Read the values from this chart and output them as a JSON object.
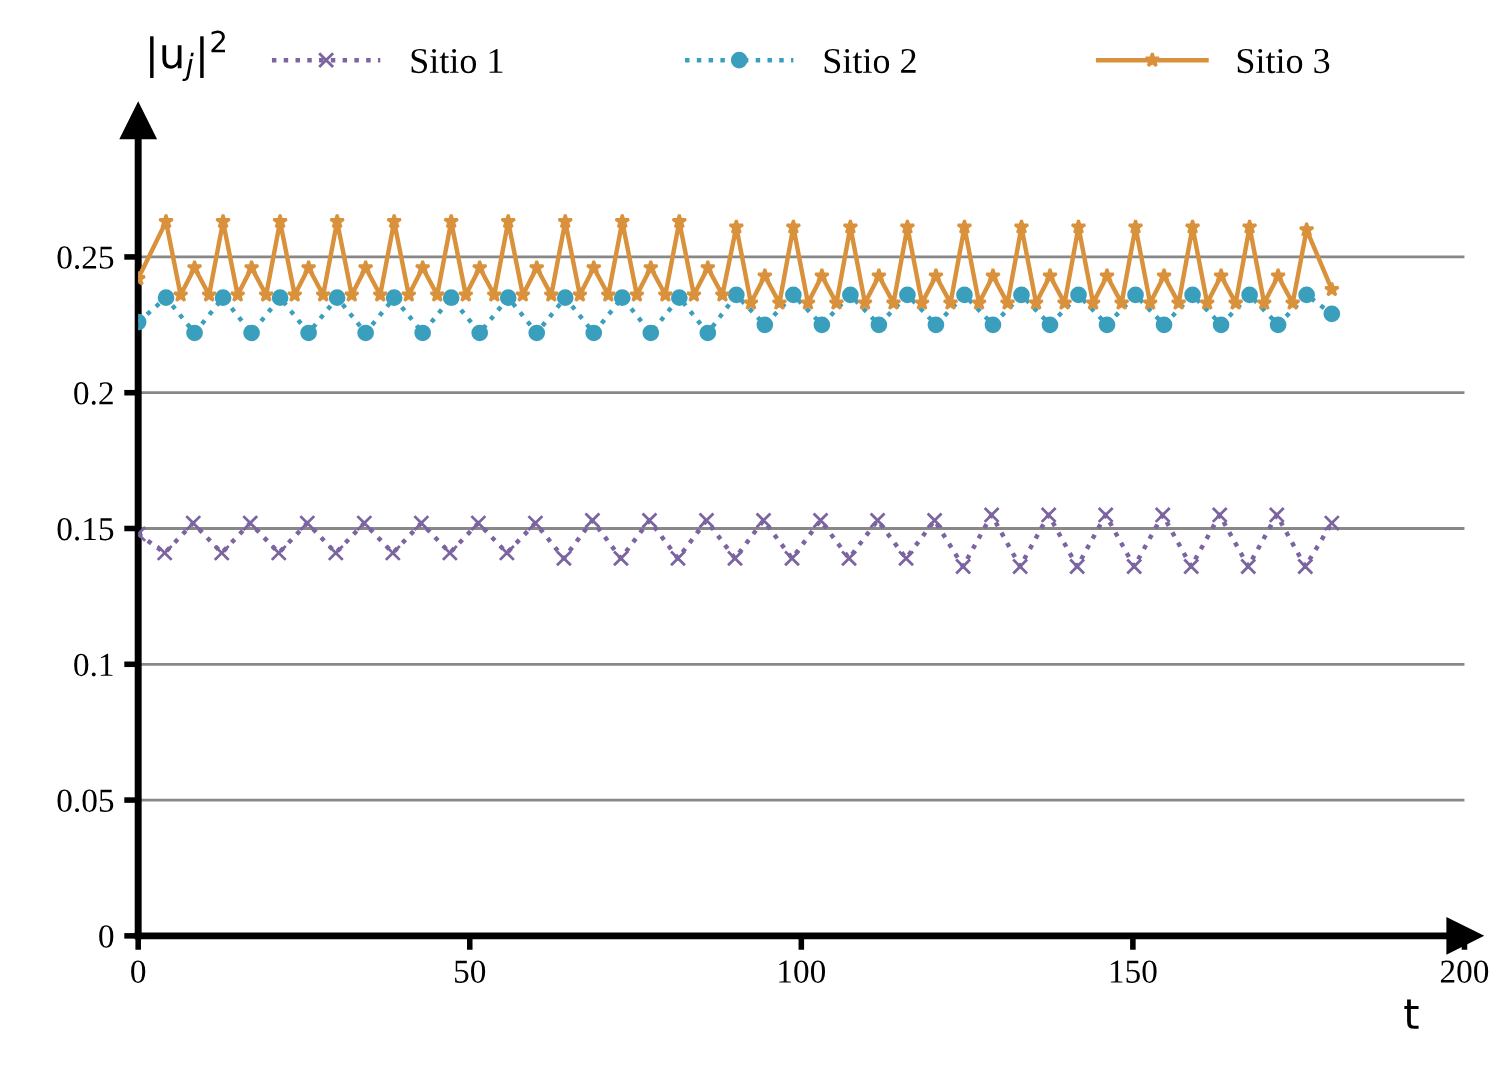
{
  "chart_data": {
    "type": "line",
    "xlabel": "t",
    "ylabel": "|u$_{j}$|$^{2}$",
    "xlim": [
      0,
      200
    ],
    "ylim": [
      0,
      0.3
    ],
    "xticks": [
      0,
      50,
      100,
      150,
      200
    ],
    "yticks": [
      0,
      0.05,
      0.1,
      0.15,
      0.2,
      0.25
    ],
    "grid": "y",
    "legend": "top",
    "series": [
      {
        "name": "Sitio 1",
        "color": "#7b64a0",
        "marker": "cross",
        "line_style": "dotted",
        "x": [
          0,
          4.0,
          8.3,
          12.6,
          16.9,
          21.2,
          25.5,
          29.8,
          34.1,
          38.4,
          42.7,
          47.0,
          51.3,
          55.6,
          59.9,
          64.2,
          68.5,
          72.8,
          77.1,
          81.4,
          85.7,
          90.0,
          94.3,
          98.6,
          102.9,
          107.2,
          111.5,
          115.8,
          120.1,
          124.4,
          128.7,
          133.0,
          137.3,
          141.6,
          145.9,
          150.2,
          154.5,
          158.8,
          163.1,
          167.4,
          171.7,
          176.0,
          180.0
        ],
        "values": [
          0.148,
          0.141,
          0.152,
          0.141,
          0.152,
          0.141,
          0.152,
          0.141,
          0.152,
          0.141,
          0.152,
          0.141,
          0.152,
          0.141,
          0.152,
          0.139,
          0.153,
          0.139,
          0.153,
          0.139,
          0.153,
          0.139,
          0.153,
          0.139,
          0.153,
          0.139,
          0.153,
          0.139,
          0.153,
          0.136,
          0.155,
          0.136,
          0.155,
          0.136,
          0.155,
          0.136,
          0.155,
          0.136,
          0.155,
          0.136,
          0.155,
          0.136,
          0.152
        ]
      },
      {
        "name": "Sitio 2",
        "color": "#3a9fbd",
        "marker": "circle",
        "line_style": "dotted",
        "x": [
          0,
          4.2,
          8.5,
          12.8,
          17.1,
          21.4,
          25.7,
          30.0,
          34.3,
          38.6,
          42.9,
          47.2,
          51.5,
          55.8,
          60.1,
          64.4,
          68.7,
          73.0,
          77.3,
          81.6,
          85.9,
          90.2,
          94.5,
          98.8,
          103.1,
          107.4,
          111.7,
          116.0,
          120.3,
          124.6,
          128.9,
          133.2,
          137.5,
          141.8,
          146.1,
          150.4,
          154.7,
          159.0,
          163.3,
          167.6,
          171.9,
          176.2,
          180.0
        ],
        "values": [
          0.226,
          0.235,
          0.222,
          0.235,
          0.222,
          0.235,
          0.222,
          0.235,
          0.222,
          0.235,
          0.222,
          0.235,
          0.222,
          0.235,
          0.222,
          0.235,
          0.222,
          0.235,
          0.222,
          0.235,
          0.222,
          0.236,
          0.225,
          0.236,
          0.225,
          0.236,
          0.225,
          0.236,
          0.225,
          0.236,
          0.225,
          0.236,
          0.225,
          0.236,
          0.225,
          0.236,
          0.225,
          0.236,
          0.225,
          0.236,
          0.225,
          0.236,
          0.229
        ]
      },
      {
        "name": "Sitio 3",
        "color": "#d9913c",
        "marker": "star",
        "line_style": "solid",
        "x": [
          0,
          4.2,
          6.4,
          8.5,
          10.7,
          12.8,
          15.0,
          17.1,
          19.3,
          21.4,
          23.6,
          25.7,
          27.9,
          30.0,
          32.2,
          34.3,
          36.5,
          38.6,
          40.8,
          42.9,
          45.1,
          47.2,
          49.4,
          51.5,
          53.7,
          55.8,
          58.0,
          60.1,
          62.3,
          64.4,
          66.6,
          68.7,
          70.9,
          73.0,
          75.2,
          77.3,
          79.5,
          81.6,
          83.8,
          85.9,
          88.1,
          90.2,
          92.4,
          94.5,
          96.7,
          98.8,
          101.0,
          103.1,
          105.3,
          107.4,
          109.6,
          111.7,
          113.9,
          116.0,
          118.2,
          120.3,
          122.5,
          124.6,
          126.8,
          128.9,
          131.1,
          133.2,
          135.4,
          137.5,
          139.7,
          141.8,
          144.0,
          146.1,
          148.3,
          150.4,
          152.6,
          154.7,
          156.9,
          159.0,
          161.2,
          163.3,
          165.5,
          167.6,
          169.8,
          171.9,
          174.1,
          176.2,
          180.0
        ],
        "values": [
          0.242,
          0.263,
          0.236,
          0.246,
          0.236,
          0.263,
          0.236,
          0.246,
          0.236,
          0.263,
          0.236,
          0.246,
          0.236,
          0.263,
          0.236,
          0.246,
          0.236,
          0.263,
          0.236,
          0.246,
          0.236,
          0.263,
          0.236,
          0.246,
          0.236,
          0.263,
          0.236,
          0.246,
          0.236,
          0.263,
          0.236,
          0.246,
          0.236,
          0.263,
          0.236,
          0.246,
          0.236,
          0.263,
          0.236,
          0.246,
          0.236,
          0.261,
          0.233,
          0.243,
          0.233,
          0.261,
          0.233,
          0.243,
          0.233,
          0.261,
          0.233,
          0.243,
          0.233,
          0.261,
          0.233,
          0.243,
          0.233,
          0.261,
          0.233,
          0.243,
          0.233,
          0.261,
          0.233,
          0.243,
          0.233,
          0.261,
          0.233,
          0.243,
          0.233,
          0.261,
          0.233,
          0.243,
          0.233,
          0.261,
          0.233,
          0.243,
          0.233,
          0.261,
          0.233,
          0.243,
          0.233,
          0.26,
          0.238
        ]
      }
    ]
  }
}
